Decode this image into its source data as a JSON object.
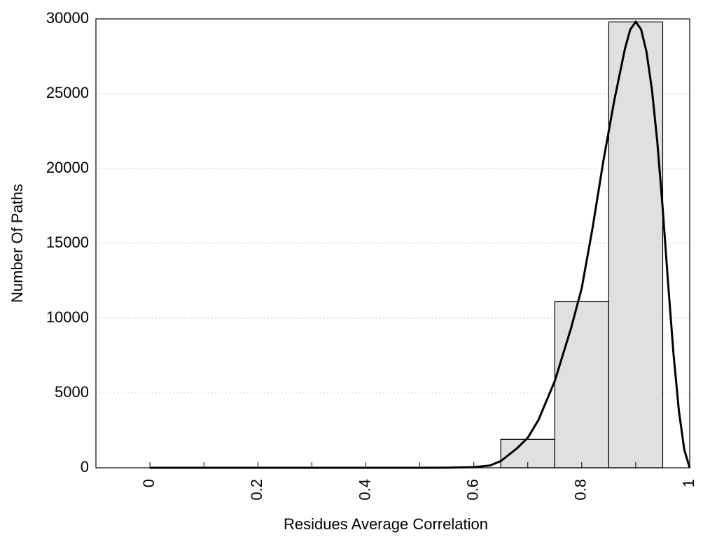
{
  "chart_data": {
    "type": "bar",
    "xlabel": "Residues Average Correlation",
    "ylabel": "Number Of Paths",
    "xlim": [
      -0.1,
      1
    ],
    "ylim": [
      0,
      30000
    ],
    "x_ticks": [
      "0",
      "0.2",
      "0.4",
      "0.6",
      "0.8",
      "1"
    ],
    "x_tick_values": [
      0,
      0.2,
      0.4,
      0.6,
      0.8,
      1
    ],
    "y_ticks": [
      "0",
      "5000",
      "10000",
      "15000",
      "20000",
      "25000",
      "30000"
    ],
    "y_tick_values": [
      0,
      5000,
      10000,
      15000,
      20000,
      25000,
      30000
    ],
    "grid": "horizontal dotted",
    "bins": [
      {
        "x0": 0.65,
        "x1": 0.75,
        "value": 1900
      },
      {
        "x0": 0.75,
        "x1": 0.85,
        "value": 11100
      },
      {
        "x0": 0.85,
        "x1": 0.95,
        "value": 29800
      }
    ],
    "fit_curve": {
      "x": [
        0,
        0.1,
        0.2,
        0.3,
        0.4,
        0.5,
        0.55,
        0.6,
        0.63,
        0.65,
        0.68,
        0.7,
        0.72,
        0.75,
        0.78,
        0.8,
        0.82,
        0.84,
        0.86,
        0.88,
        0.89,
        0.9,
        0.91,
        0.92,
        0.93,
        0.94,
        0.95,
        0.96,
        0.97,
        0.98,
        0.99,
        1.0
      ],
      "y": [
        0,
        0,
        0,
        0,
        0,
        0,
        5,
        40,
        150,
        450,
        1300,
        2000,
        3200,
        5800,
        9300,
        12000,
        16000,
        20500,
        24500,
        28000,
        29300,
        29800,
        29300,
        27800,
        25300,
        21800,
        17300,
        12300,
        7600,
        3800,
        1200,
        0
      ]
    },
    "colors": {
      "bar_fill": "#e0e0e0",
      "bar_stroke": "#000000",
      "curve": "#000000",
      "grid": "#cccccc"
    }
  }
}
